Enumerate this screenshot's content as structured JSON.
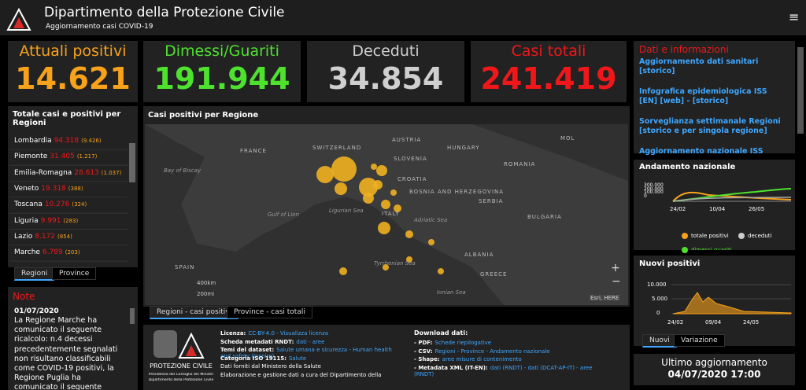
{
  "header": {
    "title": "Dipartimento della Protezione Civile",
    "subtitle": "Aggiornamento casi COVID-19"
  },
  "stats": [
    {
      "label": "Attuali positivi",
      "value": "14.621",
      "color": "#f7a21b"
    },
    {
      "label": "Dimessi/Guariti",
      "value": "191.944",
      "color": "#4ee22f"
    },
    {
      "label": "Deceduti",
      "value": "34.854",
      "color": "#cfcfcf"
    },
    {
      "label": "Casi totali",
      "value": "241.419",
      "color": "#f0171a"
    }
  ],
  "regions": {
    "title": "Totale casi e positivi per Regioni",
    "items": [
      {
        "name": "Lombardia",
        "total": "94.318",
        "positive": "(9.426)"
      },
      {
        "name": "Piemonte",
        "total": "31.405",
        "positive": "(1.217)"
      },
      {
        "name": "Emilia-Romagna",
        "total": "28.613",
        "positive": "(1.037)"
      },
      {
        "name": "Veneto",
        "total": "19.318",
        "positive": "(388)"
      },
      {
        "name": "Toscana",
        "total": "10.276",
        "positive": "(324)"
      },
      {
        "name": "Liguria",
        "total": "9.991",
        "positive": "(283)"
      },
      {
        "name": "Lazio",
        "total": "8.172",
        "positive": "(854)"
      },
      {
        "name": "Marche",
        "total": "6.789",
        "positive": "(203)"
      }
    ],
    "tabs": [
      "Regioni",
      "Province"
    ]
  },
  "note": {
    "title": "Note",
    "date": "01/07/2020",
    "text": "La Regione Marche ha comunicato il seguente ricalcolo: n.4 decessi precedentemente segnalati non risultano classificabili come COVID-19 positivi, la Regione Puglia ha comunicato il seguente ricalcolo: ha eliminato"
  },
  "map": {
    "title": "Casi positivi per Regione",
    "labels": [
      "FRANCE",
      "SWITZERLAND",
      "AUSTRIA",
      "SLOVENIA",
      "HUNGARY",
      "ROMANIA",
      "CROATIA",
      "BOSNIA AND HERZEGOVINA",
      "SERBIA",
      "BULGARIA",
      "ITALY",
      "SPAIN",
      "ALBANIA",
      "GREECE",
      "Bay of Biscay",
      "Gulf of Lion",
      "Ligurian Sea",
      "Adriatic Sea",
      "Tyrrhenian Sea",
      "Ionian Sea",
      "MOL"
    ],
    "scale": [
      "400km",
      "200mi"
    ],
    "attribution": "Esri, HERE",
    "tabs": [
      "Regioni - casi positivi",
      "Province - casi totali"
    ]
  },
  "sources": {
    "logo": [
      "PROTEZIONE CIVILE",
      "Presidenza del Consiglio dei Ministri",
      "Dipartimento della Protezione Civile"
    ],
    "license": [
      {
        "label": "Licenza:",
        "text": "CC-BY-4.0 - Visualizza licenza"
      },
      {
        "label": "Scheda metadati RNDT:",
        "text": "dati - aree"
      },
      {
        "label": "Temi del dataset:",
        "text": "Salute umana e sicurezza - Human health and safety (Inspire)"
      },
      {
        "label": "Categoria ISO 19115:",
        "text": "Salute"
      },
      {
        "text": "Dati forniti dal Ministero della Salute"
      },
      {
        "text": "Elaborazione e gestione dati a cura del Dipartimento della"
      }
    ],
    "download_title": "Download dati:",
    "download": [
      {
        "label": "- PDF:",
        "text": "Schede riepilogative"
      },
      {
        "label": "- CSV:",
        "text": "Regioni - Province - Andamento nazionale"
      },
      {
        "label": "- Shape:",
        "text": "aree misure di contenimento"
      },
      {
        "label": "- Metadata XML (IT-EN):",
        "text": "dati (RNDT) - dati (DCAT-AP-IT) - aree (RNDT)"
      }
    ]
  },
  "info": {
    "title": "Dati e informazioni",
    "links": [
      "Aggiornamento dati sanitari [storico]",
      "Infografica epidemiologica ISS [EN] [web] - [storico]",
      "Sorveglianza settimanale Regioni [storico e per singola regione]",
      "Aggiornamento nazionale ISS"
    ]
  },
  "andamento": {
    "title": "Andamento nazionale",
    "yticks": [
      "300.000",
      "200.000",
      "100.000",
      "0"
    ],
    "xticks": [
      "24/02",
      "10/04",
      "26/05"
    ],
    "legend": [
      "totale positivi",
      "deceduti",
      "dimessi guariti"
    ]
  },
  "nuovi": {
    "title": "Nuovi positivi",
    "yticks": [
      "10.000",
      "5.000",
      "0"
    ],
    "xticks": [
      "24/02",
      "09/04",
      "24/05"
    ],
    "tabs": [
      "Nuovi",
      "Variazione"
    ]
  },
  "update": {
    "title": "Ultimo aggiornamento",
    "value": "04/07/2020 17:00"
  }
}
